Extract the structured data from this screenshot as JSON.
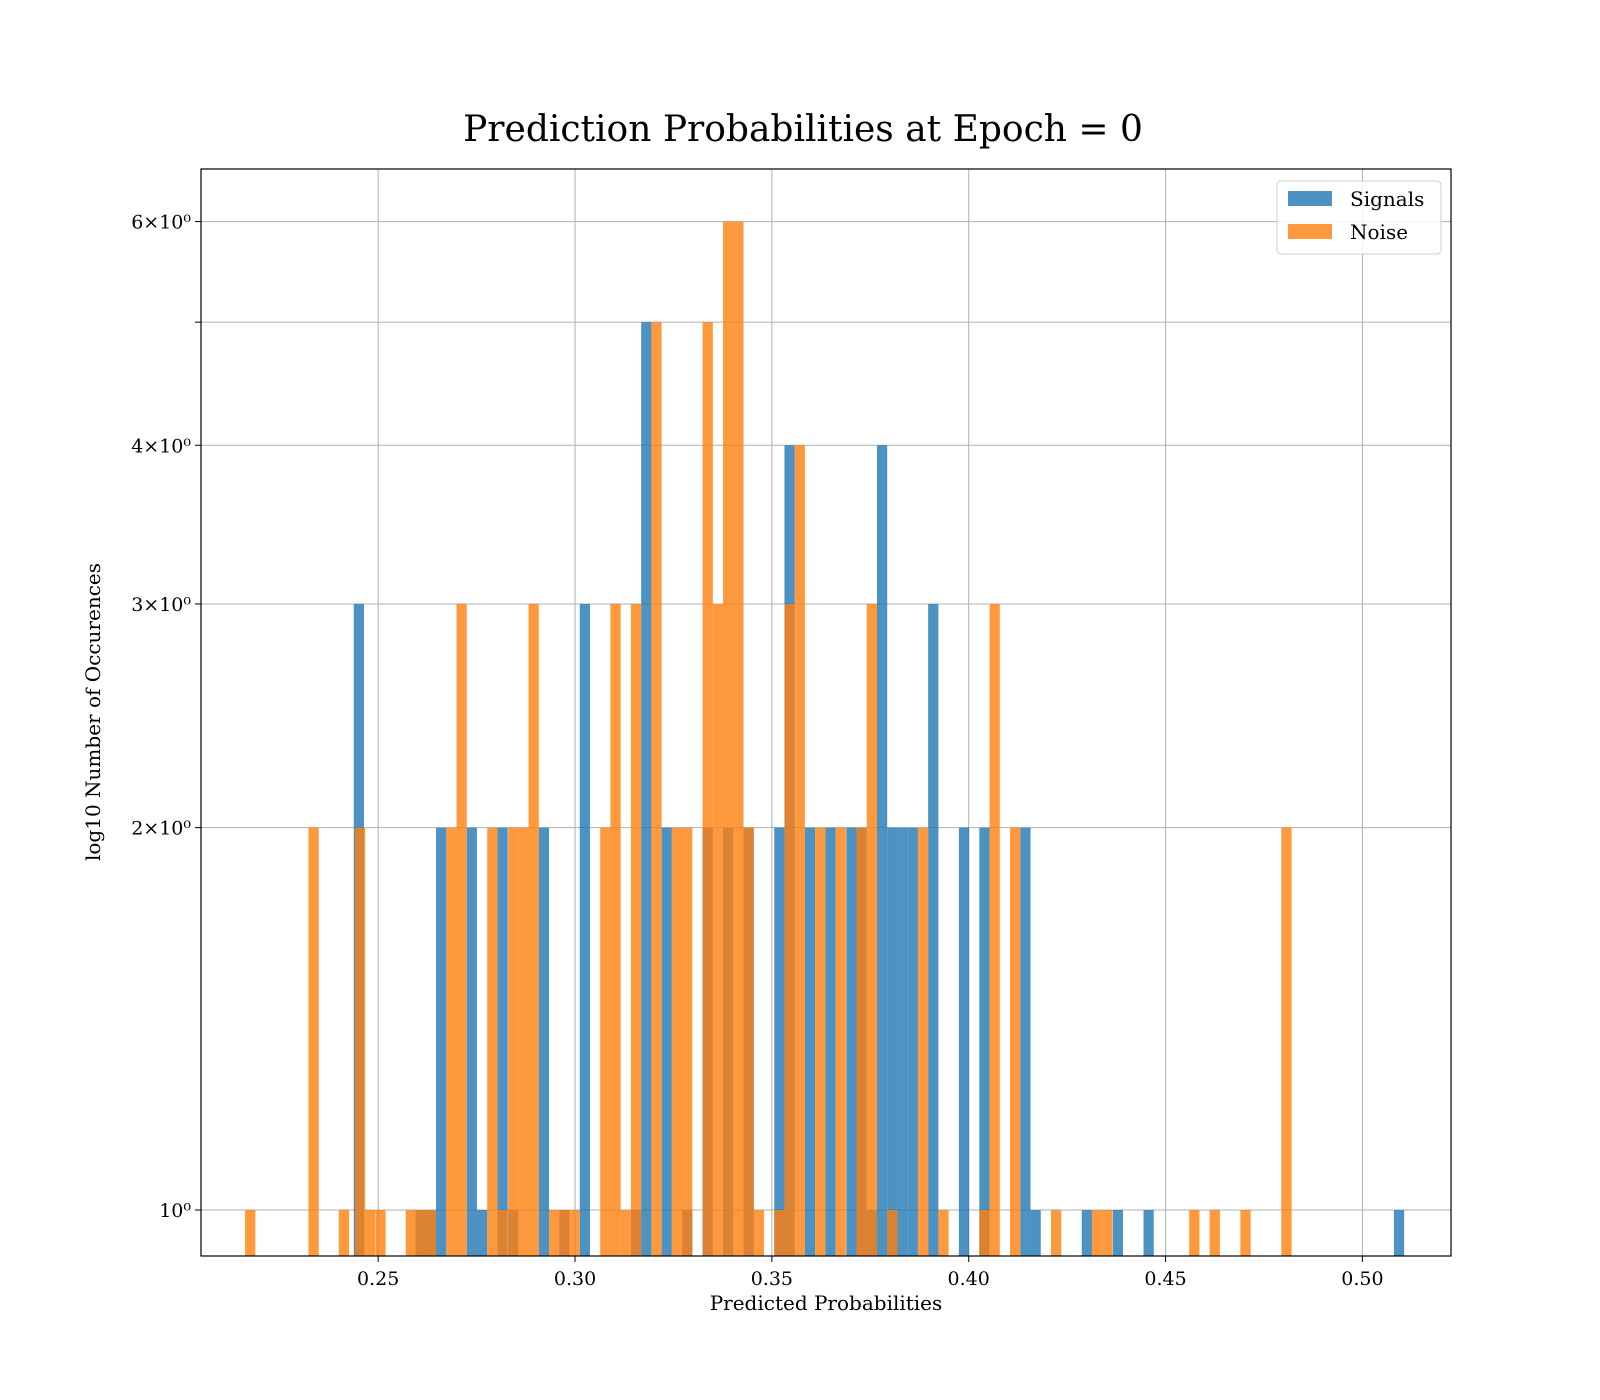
{
  "chart_data": {
    "type": "bar",
    "title": "Prediction Probabilities at Epoch = 0",
    "xlabel": "Predicted Probabilities",
    "ylabel": "log10 Number of Occurences",
    "xlim": [
      0.205,
      0.5225
    ],
    "ylim": [
      0.92,
      6.6
    ],
    "yscale": "log",
    "grid": true,
    "legend_position": "top-right",
    "x_ticks": [
      {
        "value": 0.25,
        "label": "0.25"
      },
      {
        "value": 0.3,
        "label": "0.30"
      },
      {
        "value": 0.35,
        "label": "0.35"
      },
      {
        "value": 0.4,
        "label": "0.40"
      },
      {
        "value": 0.45,
        "label": "0.45"
      },
      {
        "value": 0.5,
        "label": "0.50"
      }
    ],
    "y_ticks": [
      {
        "value": 1,
        "label": "10⁰"
      },
      {
        "value": 2,
        "label": "2×10⁰"
      },
      {
        "value": 3,
        "label": "3×10⁰"
      },
      {
        "value": 4,
        "label": "4×10⁰"
      },
      {
        "value": 5,
        "label": ""
      },
      {
        "value": 6,
        "label": "6×10⁰"
      }
    ],
    "bin_width": 0.0026,
    "series": [
      {
        "name": "Signals",
        "color": "#1f77b4",
        "bins": [
          [
            0.2438,
            3
          ],
          [
            0.2595,
            1
          ],
          [
            0.2621,
            1
          ],
          [
            0.2647,
            2
          ],
          [
            0.2725,
            2
          ],
          [
            0.2751,
            1
          ],
          [
            0.2803,
            2
          ],
          [
            0.283,
            1
          ],
          [
            0.2908,
            2
          ],
          [
            0.296,
            1
          ],
          [
            0.3012,
            3
          ],
          [
            0.3142,
            1
          ],
          [
            0.3168,
            5
          ],
          [
            0.322,
            2
          ],
          [
            0.3272,
            1
          ],
          [
            0.3324,
            2
          ],
          [
            0.3376,
            2
          ],
          [
            0.3428,
            2
          ],
          [
            0.3506,
            2
          ],
          [
            0.3532,
            4
          ],
          [
            0.3584,
            2
          ],
          [
            0.3636,
            2
          ],
          [
            0.3689,
            2
          ],
          [
            0.3715,
            2
          ],
          [
            0.3741,
            1
          ],
          [
            0.3767,
            4
          ],
          [
            0.3793,
            2
          ],
          [
            0.3819,
            2
          ],
          [
            0.3845,
            2
          ],
          [
            0.3897,
            3
          ],
          [
            0.3975,
            2
          ],
          [
            0.4027,
            2
          ],
          [
            0.4131,
            2
          ],
          [
            0.4157,
            1
          ],
          [
            0.4287,
            1
          ],
          [
            0.4366,
            1
          ],
          [
            0.4444,
            1
          ],
          [
            0.508,
            1
          ]
        ]
      },
      {
        "name": "Noise",
        "color": "#ff7f0e",
        "bins": [
          [
            0.2162,
            1
          ],
          [
            0.2323,
            2
          ],
          [
            0.24,
            1
          ],
          [
            0.2441,
            2
          ],
          [
            0.2466,
            1
          ],
          [
            0.2493,
            1
          ],
          [
            0.257,
            1
          ],
          [
            0.2595,
            1
          ],
          [
            0.2621,
            1
          ],
          [
            0.2673,
            2
          ],
          [
            0.2699,
            3
          ],
          [
            0.2777,
            2
          ],
          [
            0.2803,
            1
          ],
          [
            0.283,
            2
          ],
          [
            0.2856,
            2
          ],
          [
            0.2882,
            3
          ],
          [
            0.2934,
            1
          ],
          [
            0.296,
            1
          ],
          [
            0.2986,
            1
          ],
          [
            0.3064,
            2
          ],
          [
            0.309,
            3
          ],
          [
            0.3116,
            1
          ],
          [
            0.3142,
            3
          ],
          [
            0.3194,
            5
          ],
          [
            0.3246,
            2
          ],
          [
            0.3272,
            2
          ],
          [
            0.3324,
            5
          ],
          [
            0.335,
            3
          ],
          [
            0.3376,
            6
          ],
          [
            0.3402,
            6
          ],
          [
            0.3428,
            2
          ],
          [
            0.3454,
            1
          ],
          [
            0.3506,
            1
          ],
          [
            0.3532,
            3
          ],
          [
            0.3558,
            4
          ],
          [
            0.361,
            2
          ],
          [
            0.3662,
            2
          ],
          [
            0.3715,
            2
          ],
          [
            0.3741,
            3
          ],
          [
            0.3793,
            1
          ],
          [
            0.3871,
            2
          ],
          [
            0.3923,
            1
          ],
          [
            0.4027,
            1
          ],
          [
            0.4053,
            3
          ],
          [
            0.4105,
            2
          ],
          [
            0.4209,
            1
          ],
          [
            0.4313,
            1
          ],
          [
            0.4339,
            1
          ],
          [
            0.456,
            1
          ],
          [
            0.4612,
            1
          ],
          [
            0.469,
            1
          ],
          [
            0.4794,
            2
          ]
        ]
      }
    ]
  }
}
